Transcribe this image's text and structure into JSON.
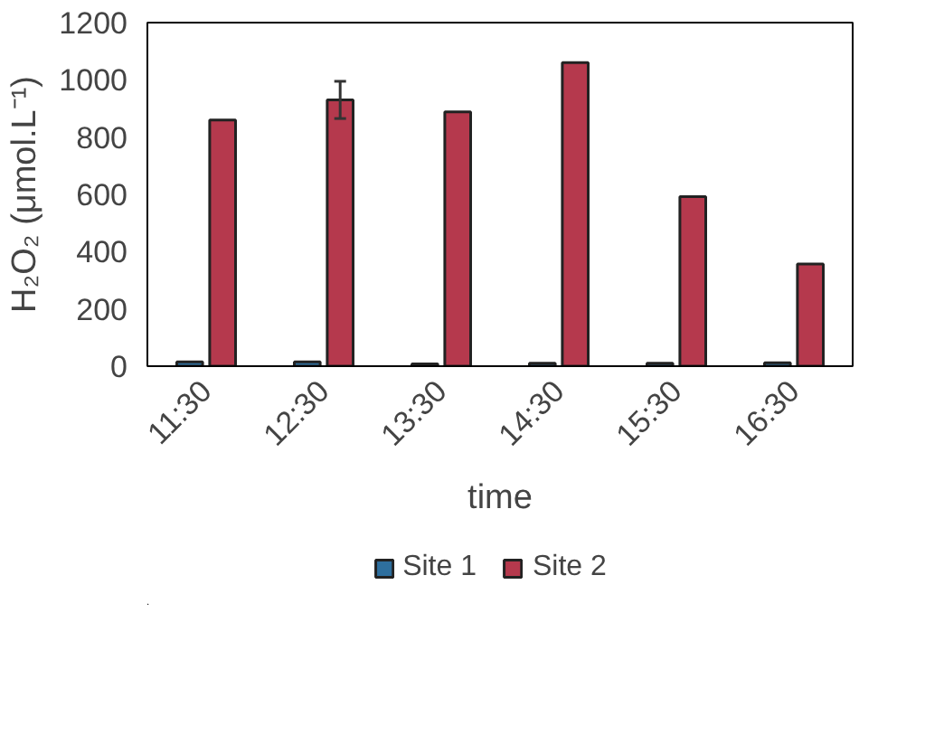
{
  "chart_data": {
    "type": "bar",
    "xlabel": "time",
    "ylabel": "H₂O₂ (μmol.L⁻¹)",
    "categories": [
      "11:30",
      "12:30",
      "13:30",
      "14:30",
      "15:30",
      "16:30"
    ],
    "series": [
      {
        "name": "Site 1",
        "color": "#2e6f9e",
        "values": [
          15,
          15,
          8,
          10,
          10,
          12
        ]
      },
      {
        "name": "Site 2",
        "color": "#b5394d",
        "values": [
          860,
          930,
          888,
          1060,
          592,
          357
        ],
        "errors": [
          null,
          65,
          null,
          null,
          null,
          null
        ]
      }
    ],
    "ylim": [
      0,
      1200
    ],
    "yticks": [
      0,
      200,
      400,
      600,
      800,
      1000,
      1200
    ],
    "grid": false,
    "legend": "bottom"
  }
}
